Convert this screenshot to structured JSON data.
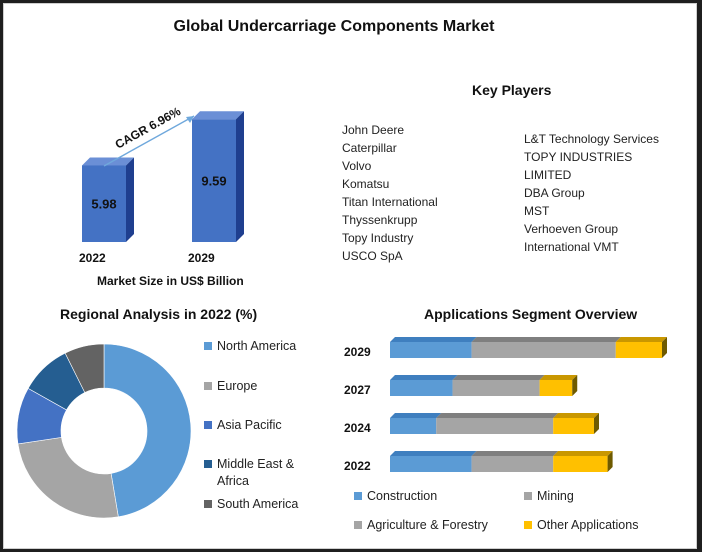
{
  "title": "Global Undercarriage Components Market",
  "market_size": {
    "cagr_label": "CAGR 6.96%",
    "caption": "Market Size in US$ Billion",
    "bars": [
      {
        "year": "2022",
        "value": 5.98,
        "label": "5.98"
      },
      {
        "year": "2029",
        "value": 9.59,
        "label": "9.59"
      }
    ],
    "bar_color": "#4472c4"
  },
  "key_players": {
    "title": "Key Players",
    "left": [
      "John Deere",
      "Caterpillar",
      "Volvo",
      "Komatsu",
      "Titan International",
      "Thyssenkrupp",
      "Topy Industry",
      "USCO SpA"
    ],
    "right": [
      "L&T Technology Services",
      "TOPY INDUSTRIES",
      "LIMITED",
      "DBA Group",
      "MST",
      "Verhoeven Group",
      "International VMT"
    ]
  },
  "regional": {
    "title": "Regional Analysis in 2022 (%)",
    "legend": [
      "North America",
      "Europe",
      "Asia Pacific",
      "Middle East & Africa",
      "South America"
    ]
  },
  "applications": {
    "title": "Applications Segment Overview",
    "legend": [
      "Construction",
      "Mining",
      "Agriculture & Forestry",
      "Other Applications"
    ]
  },
  "chart_data": [
    {
      "type": "bar",
      "categories": [
        "2022",
        "2029"
      ],
      "values": [
        5.98,
        9.59
      ],
      "title": "",
      "xlabel": "Market Size in US$ Billion",
      "ylabel": "",
      "annotations": [
        "CAGR 6.96%"
      ]
    },
    {
      "type": "pie",
      "title": "Regional Analysis in 2022 (%)",
      "labels": [
        "North America",
        "Europe",
        "Asia Pacific",
        "Middle East & Africa",
        "South America"
      ],
      "values": [
        45,
        24,
        10,
        9,
        7
      ],
      "colors": [
        "#5b9bd5",
        "#a5a5a5",
        "#4472c4",
        "#255e91",
        "#636363"
      ],
      "donut": true
    },
    {
      "type": "bar",
      "orientation": "horizontal",
      "stacked": true,
      "title": "Applications Segment Overview",
      "categories": [
        "2029",
        "2027",
        "2024",
        "2022"
      ],
      "series": [
        {
          "name": "Construction",
          "values": [
            30,
            23,
            17,
            30
          ],
          "color": "#5b9bd5"
        },
        {
          "name": "Mining",
          "values": [
            53,
            32,
            43,
            30
          ],
          "color": "#a5a5a5"
        },
        {
          "name": "Agriculture & Forestry",
          "values": [
            0,
            0,
            0,
            0
          ],
          "color": "#a5a5a5"
        },
        {
          "name": "Other Applications",
          "values": [
            17,
            12,
            15,
            20
          ],
          "color": "#ffc000"
        }
      ],
      "legend_position": "bottom"
    }
  ]
}
